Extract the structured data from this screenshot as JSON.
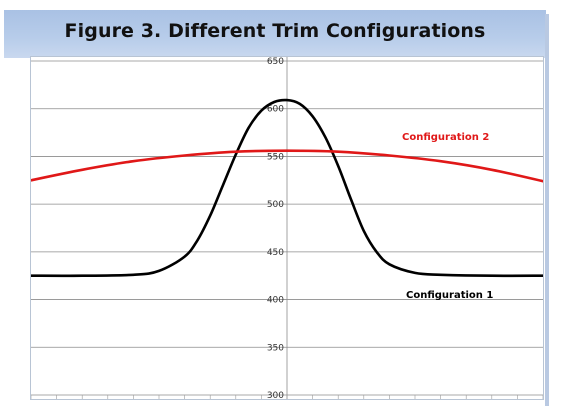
{
  "chart_data": {
    "type": "line",
    "title": "Figure 3. Different Trim Configurations",
    "xlabel": "",
    "ylabel": "",
    "ylim": [
      300,
      650
    ],
    "yticks": [
      300,
      350,
      400,
      450,
      500,
      550,
      600,
      650
    ],
    "xlim": [
      -1,
      1
    ],
    "grid": "horizontal",
    "legend": "inline labels",
    "series": [
      {
        "name": "Configuration 1",
        "color": "#000000",
        "x": [
          -1.0,
          -0.8,
          -0.6,
          -0.5,
          -0.4,
          -0.35,
          -0.3,
          -0.25,
          -0.2,
          -0.15,
          -0.1,
          -0.05,
          0.0,
          0.05,
          0.1,
          0.15,
          0.2,
          0.25,
          0.3,
          0.35,
          0.4,
          0.5,
          0.6,
          0.8,
          1.0
        ],
        "values": [
          425,
          425,
          426,
          430,
          445,
          462,
          488,
          520,
          552,
          580,
          598,
          607,
          609,
          605,
          592,
          570,
          540,
          505,
          472,
          450,
          437,
          428,
          426,
          425,
          425
        ]
      },
      {
        "name": "Configuration 2",
        "color": "#e01818",
        "x": [
          -1.0,
          -0.8,
          -0.6,
          -0.4,
          -0.2,
          0.0,
          0.2,
          0.4,
          0.6,
          0.8,
          1.0
        ],
        "values": [
          525,
          536,
          545,
          551,
          555,
          556,
          555,
          551,
          545,
          536,
          524
        ]
      }
    ]
  }
}
